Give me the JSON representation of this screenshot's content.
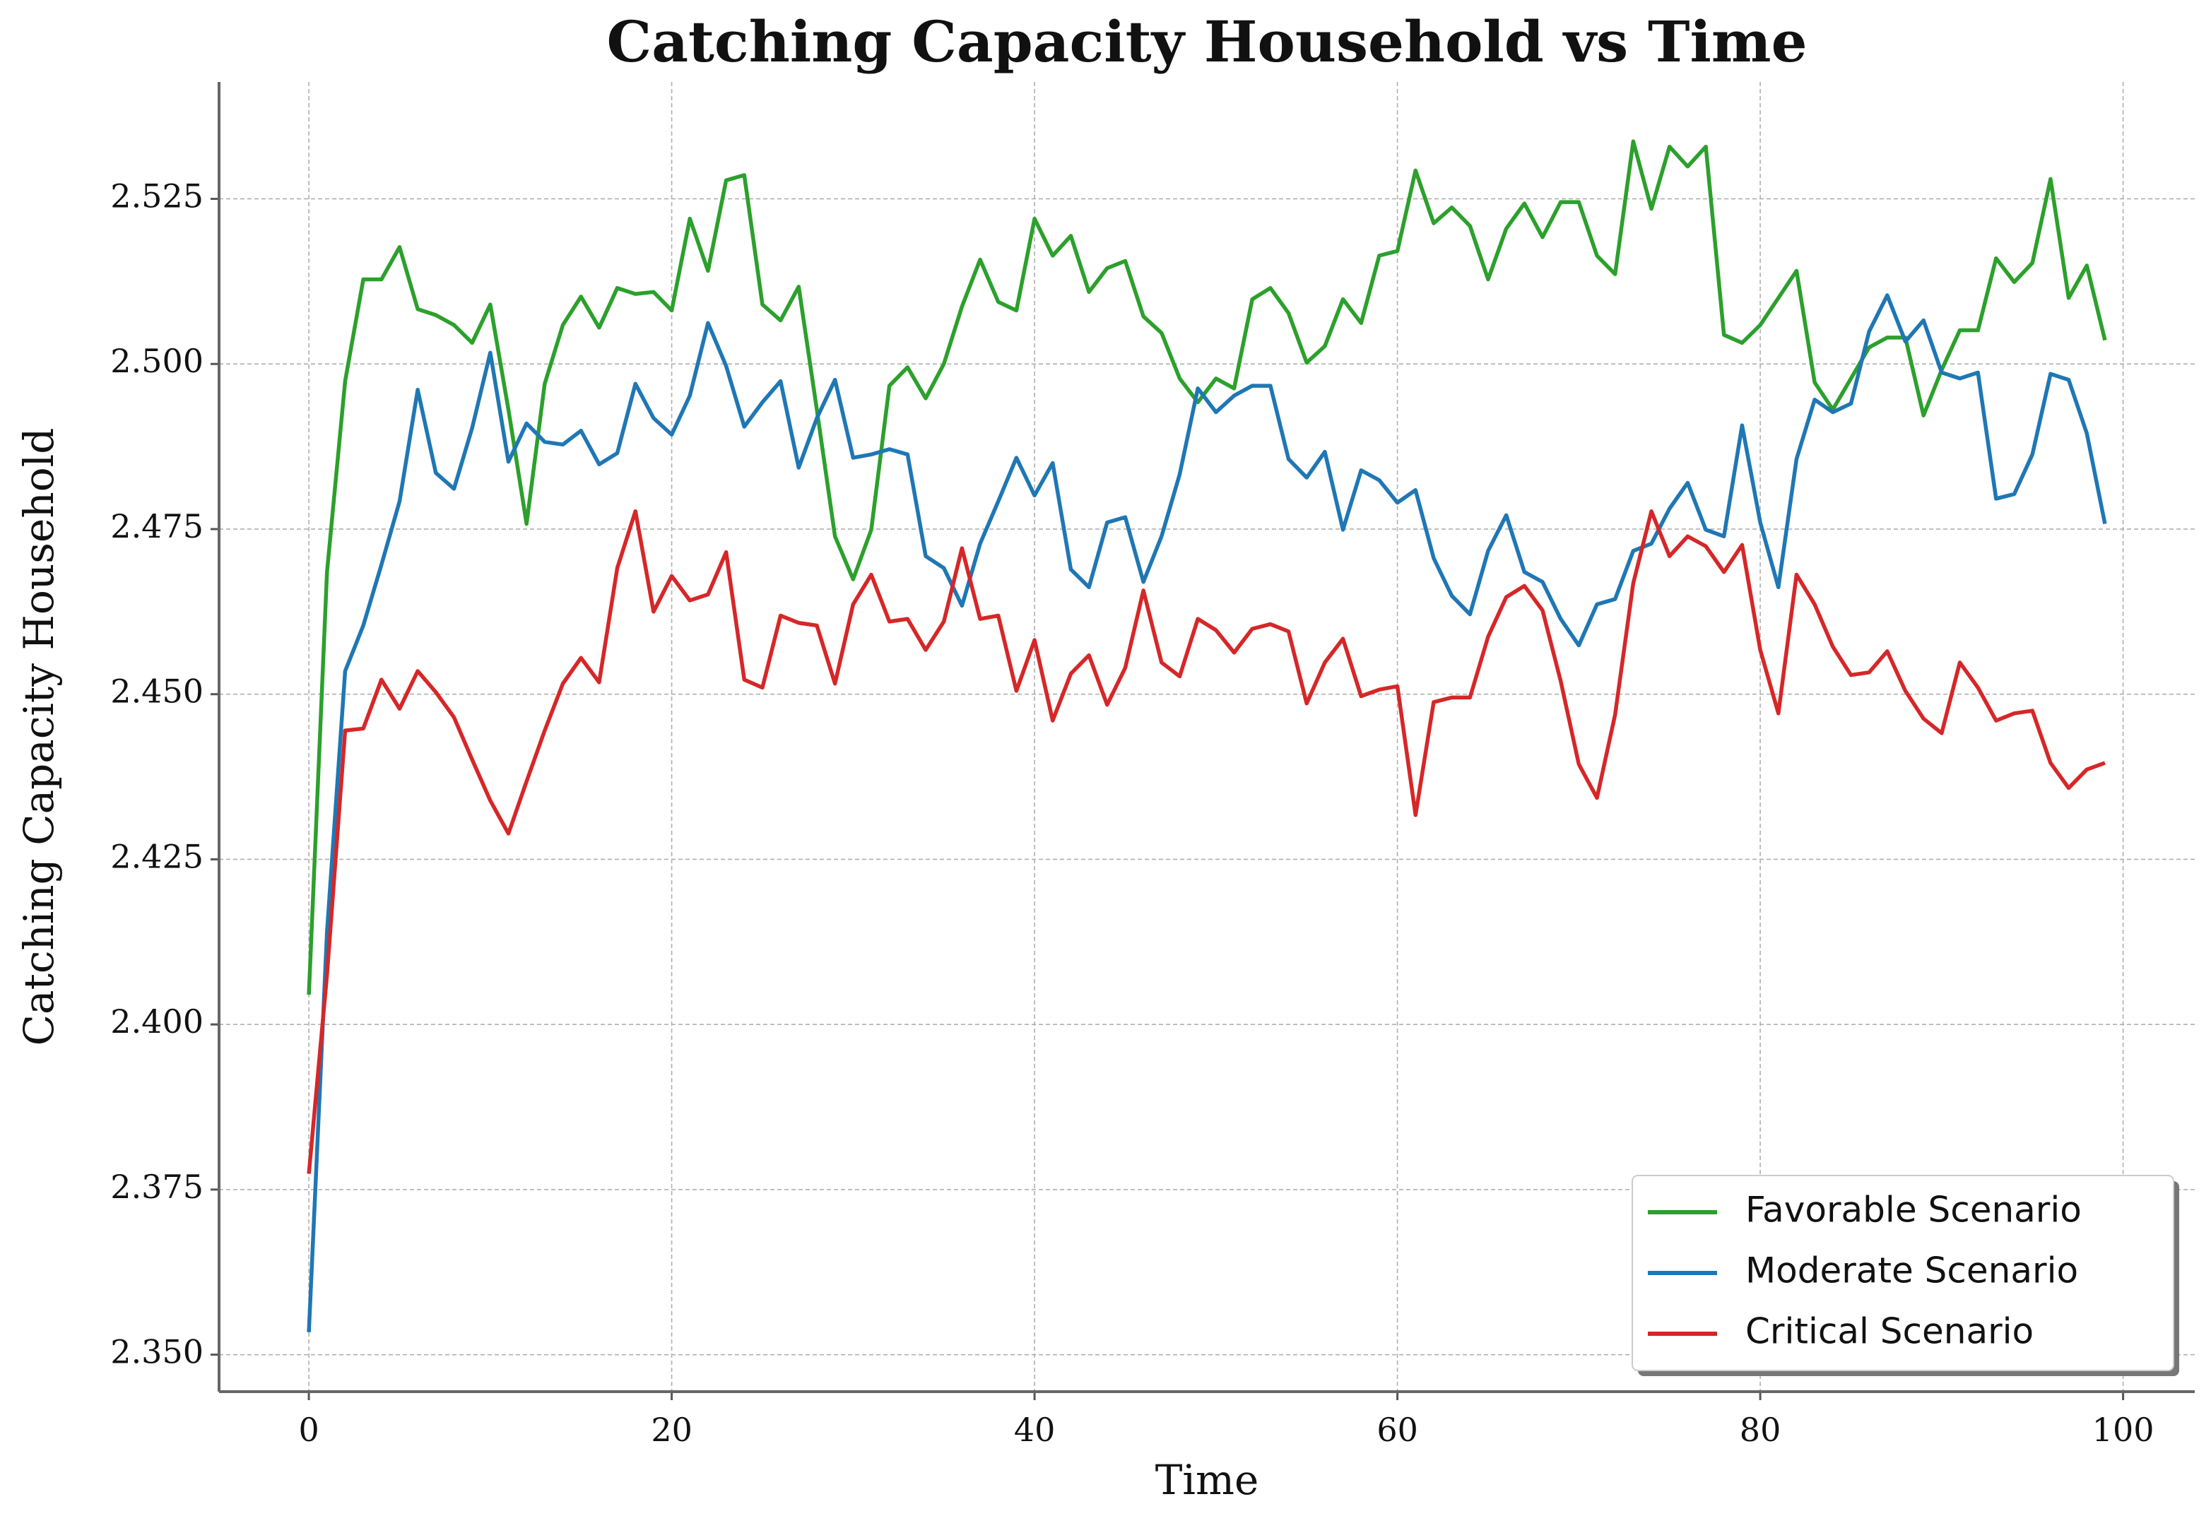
{
  "chart_data": {
    "type": "line",
    "title": "Catching Capacity Household vs Time",
    "x_label": "Time",
    "y_label": "Catching Capacity Household",
    "x": [
      0,
      1,
      2,
      3,
      4,
      5,
      6,
      7,
      8,
      9,
      10,
      11,
      12,
      13,
      14,
      15,
      16,
      17,
      18,
      19,
      20,
      21,
      22,
      23,
      24,
      25,
      26,
      27,
      28,
      29,
      30,
      31,
      32,
      33,
      34,
      35,
      36,
      37,
      38,
      39,
      40,
      41,
      42,
      43,
      44,
      45,
      46,
      47,
      48,
      49,
      50,
      51,
      52,
      53,
      54,
      55,
      56,
      57,
      58,
      59,
      60,
      61,
      62,
      63,
      64,
      65,
      66,
      67,
      68,
      69,
      70,
      71,
      72,
      73,
      74,
      75,
      76,
      77,
      78,
      79,
      80,
      81,
      82,
      83,
      84,
      85,
      86,
      87,
      88,
      89,
      90,
      91,
      92,
      93,
      94,
      95,
      96,
      97,
      98,
      99
    ],
    "series": [
      {
        "name": "Favorable Scenario",
        "color": "#2ca02c",
        "values": [
          2.4045,
          2.4685,
          2.4974,
          2.5128,
          2.5128,
          2.5177,
          2.5083,
          2.5074,
          2.5059,
          2.5032,
          2.509,
          2.4931,
          2.4758,
          2.497,
          2.5059,
          2.5102,
          2.5055,
          2.5115,
          2.5106,
          2.5109,
          2.5081,
          2.522,
          2.5141,
          2.5278,
          2.5286,
          2.509,
          2.5066,
          2.5117,
          2.4931,
          2.4739,
          2.4674,
          2.4749,
          2.4967,
          2.4995,
          2.4948,
          2.5,
          2.5087,
          2.5158,
          2.5094,
          2.5081,
          2.522,
          2.5164,
          2.5194,
          2.5109,
          2.5145,
          2.5156,
          2.5072,
          2.5047,
          2.4978,
          2.4942,
          2.4978,
          2.4963,
          2.5098,
          2.5115,
          2.5077,
          2.5002,
          2.5027,
          2.5098,
          2.5062,
          2.5164,
          2.5171,
          2.5293,
          2.5213,
          2.5237,
          2.5209,
          2.5128,
          2.5205,
          2.5243,
          2.5192,
          2.5245,
          2.5245,
          2.5164,
          2.5136,
          2.5337,
          2.5235,
          2.5329,
          2.5299,
          2.5329,
          2.5044,
          2.5032,
          2.5059,
          2.51,
          2.5141,
          2.4972,
          2.4931,
          2.4978,
          2.5025,
          2.504,
          2.504,
          2.4922,
          2.4991,
          2.5051,
          2.5051,
          2.516,
          2.5124,
          2.5153,
          2.528,
          2.51,
          2.5149,
          2.5036
        ]
      },
      {
        "name": "Moderate Scenario",
        "color": "#1f77b4",
        "values": [
          2.3534,
          2.414,
          2.4535,
          2.4604,
          2.4696,
          2.4792,
          2.4961,
          2.4835,
          2.4811,
          2.4903,
          2.5017,
          2.4852,
          2.491,
          2.4882,
          2.4878,
          2.4899,
          2.4848,
          2.4865,
          2.497,
          2.4918,
          2.4893,
          2.4952,
          2.5062,
          2.4997,
          2.4905,
          2.4942,
          2.4974,
          2.4843,
          2.4918,
          2.4976,
          2.4858,
          2.4863,
          2.4871,
          2.4863,
          2.4709,
          2.4691,
          2.4634,
          2.4728,
          2.4792,
          2.4858,
          2.4801,
          2.485,
          2.4689,
          2.4662,
          2.476,
          2.4768,
          2.467,
          2.4739,
          2.4833,
          2.4963,
          2.4927,
          2.4952,
          2.4967,
          2.4967,
          2.4856,
          2.4828,
          2.4867,
          2.4749,
          2.4839,
          2.4824,
          2.479,
          2.4809,
          2.4706,
          2.4649,
          2.4621,
          2.4717,
          2.4771,
          2.4685,
          2.467,
          2.4614,
          2.4574,
          2.4636,
          2.4644,
          2.4717,
          2.4728,
          2.4781,
          2.482,
          2.4749,
          2.4739,
          2.4907,
          2.476,
          2.4662,
          2.4856,
          2.4946,
          2.4927,
          2.494,
          2.5049,
          2.5104,
          2.5034,
          2.5066,
          2.4987,
          2.4978,
          2.4987,
          2.4796,
          2.4803,
          2.4863,
          2.4985,
          2.4976,
          2.4895,
          2.4758
        ]
      },
      {
        "name": "Critical Scenario",
        "color": "#d62728",
        "values": [
          2.3774,
          2.4075,
          2.4445,
          2.4448,
          2.4522,
          2.4478,
          2.4535,
          2.4503,
          2.4465,
          2.4401,
          2.4339,
          2.4289,
          2.4368,
          2.4445,
          2.4516,
          2.4555,
          2.4518,
          2.4691,
          2.4777,
          2.4625,
          2.4679,
          2.4642,
          2.4651,
          2.4715,
          2.4522,
          2.451,
          2.4619,
          2.4608,
          2.4604,
          2.4516,
          2.4636,
          2.4681,
          2.461,
          2.4614,
          2.4567,
          2.461,
          2.4721,
          2.4614,
          2.4619,
          2.4505,
          2.4582,
          2.446,
          2.4531,
          2.4559,
          2.4484,
          2.454,
          2.4657,
          2.4548,
          2.4527,
          2.4614,
          2.4597,
          2.4563,
          2.4599,
          2.4606,
          2.4595,
          2.4486,
          2.4548,
          2.4584,
          2.4497,
          2.4507,
          2.4512,
          2.4317,
          2.4488,
          2.4495,
          2.4495,
          2.4587,
          2.4647,
          2.4664,
          2.4627,
          2.452,
          2.4394,
          2.4343,
          2.4469,
          2.4668,
          2.4777,
          2.4709,
          2.4739,
          2.4724,
          2.4685,
          2.4726,
          2.4567,
          2.4471,
          2.4681,
          2.4636,
          2.4572,
          2.4529,
          2.4533,
          2.4565,
          2.4505,
          2.4463,
          2.4441,
          2.4548,
          2.451,
          2.446,
          2.4471,
          2.4475,
          2.4396,
          2.4358,
          2.4386,
          2.4396
        ]
      }
    ],
    "xlim": [
      -4.95,
      103.95
    ],
    "ylim": [
      2.3444,
      2.5427
    ],
    "xticks": [
      0,
      20,
      40,
      60,
      80,
      100
    ],
    "yticks": [
      {
        "value": 2.35,
        "label": "2.350"
      },
      2.375,
      {
        "value": 2.4,
        "label": "2.400"
      },
      2.425,
      {
        "value": 2.45,
        "label": "2.450"
      },
      2.475,
      {
        "value": 2.5,
        "label": "2.500"
      },
      2.525
    ],
    "grid": true,
    "legend": "lower right"
  }
}
